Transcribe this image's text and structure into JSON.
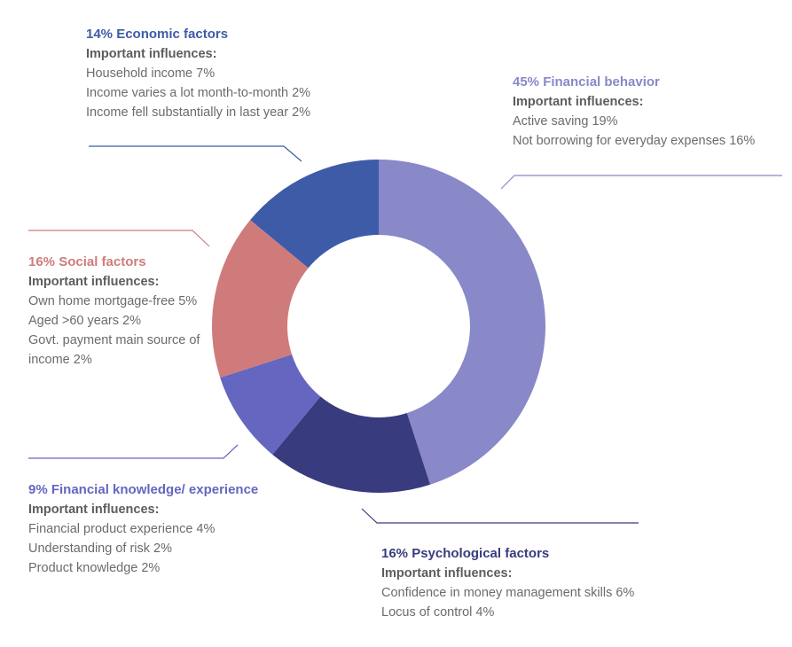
{
  "chart_data": {
    "type": "pie",
    "donut": true,
    "slices": [
      {
        "key": "behavior",
        "value": 45,
        "color": "#8988c8",
        "title": "45% Financial behavior",
        "subtitle": "Important influences:",
        "items": [
          "Active saving 19%",
          "Not borrowing for everyday expenses 16%"
        ]
      },
      {
        "key": "psych",
        "value": 16,
        "color": "#383c7e",
        "title": "16% Psychological factors",
        "subtitle": "Important influences:",
        "items": [
          "Confidence in money management skills 6%",
          "Locus of control 4%"
        ]
      },
      {
        "key": "knowledge",
        "value": 9,
        "color": "#6466bf",
        "title": "9% Financial knowledge/ experience",
        "subtitle": "Important influences:",
        "items": [
          "Financial product experience 4%",
          "Understanding of risk 2%",
          "Product knowledge 2%"
        ]
      },
      {
        "key": "social",
        "value": 16,
        "color": "#d07b7b",
        "title": "16% Social factors",
        "subtitle": "Important influences:",
        "items": [
          "Own home mortgage-free 5%",
          "Aged >60 years 2%",
          "Govt. payment main source of income 2%"
        ]
      },
      {
        "key": "economic",
        "value": 14,
        "color": "#3e5ba8",
        "title": "14% Economic factors",
        "subtitle": "Important influences:",
        "items": [
          "Household income 7%",
          "Income varies a lot month-to-month 2%",
          "Income fell substantially in last year 2%"
        ]
      }
    ]
  },
  "colors": {
    "text": "#6b6b6b",
    "subtitle": "#5d5d5d"
  }
}
